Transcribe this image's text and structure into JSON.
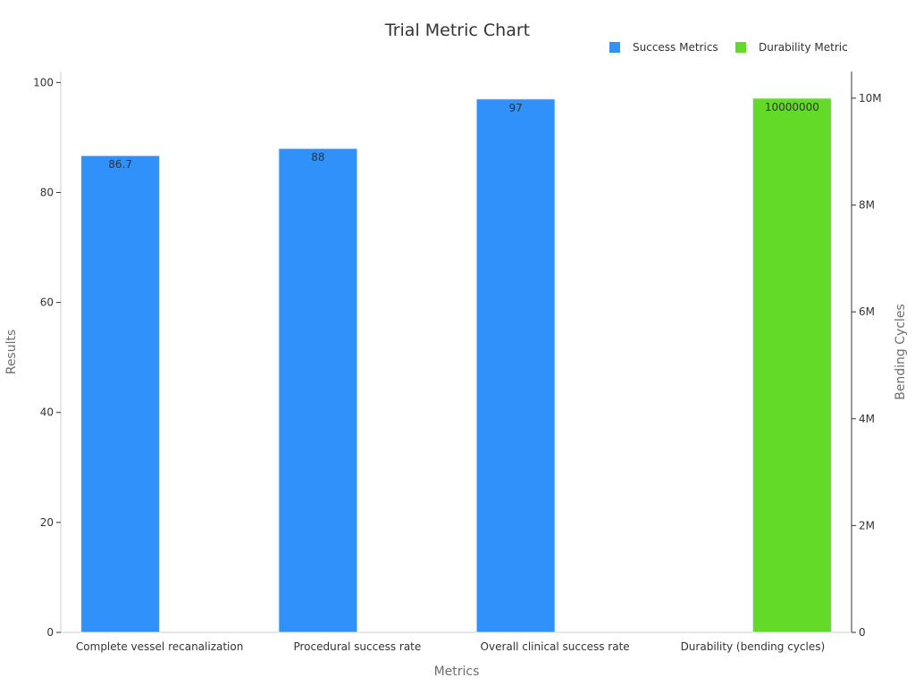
{
  "chart_data": {
    "type": "bar",
    "title": "Trial Metric Chart",
    "xlabel": "Metrics",
    "ylabel": "Results",
    "y2label": "Bending Cycles",
    "categories": [
      "Complete vessel recanalization",
      "Procedural success rate",
      "Overall clinical success rate",
      "Durability (bending cycles)"
    ],
    "ylim": [
      0,
      102
    ],
    "yticks": [
      0,
      20,
      40,
      60,
      80,
      100
    ],
    "y2lim": [
      0,
      10500000
    ],
    "y2ticks": [
      {
        "value": 0,
        "label": "0"
      },
      {
        "value": 2000000,
        "label": "2M"
      },
      {
        "value": 4000000,
        "label": "4M"
      },
      {
        "value": 6000000,
        "label": "6M"
      },
      {
        "value": 8000000,
        "label": "8M"
      },
      {
        "value": 10000000,
        "label": "10M"
      }
    ],
    "legend_position": "top-right",
    "grid": false,
    "series": [
      {
        "name": "Success Metrics",
        "axis": "left",
        "color": "#2f91f9",
        "values": [
          86.7,
          88,
          97,
          null
        ],
        "labels": [
          "86.7",
          "88",
          "97",
          ""
        ]
      },
      {
        "name": "Durability Metric",
        "axis": "right",
        "color": "#63d928",
        "values": [
          null,
          null,
          null,
          10000000
        ],
        "labels": [
          "",
          "",
          "",
          "10000000"
        ]
      }
    ]
  }
}
